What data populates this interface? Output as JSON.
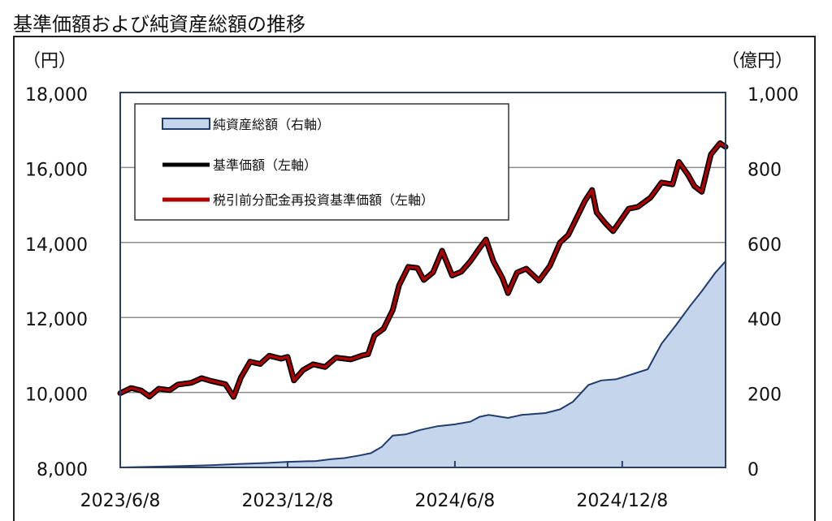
{
  "title": "基準価額および純資産総額の推移",
  "chart_data": {
    "type": "line",
    "title": "基準価額および純資産総額の推移",
    "left_axis": {
      "unit_label": "（円）",
      "range": [
        8000,
        18000
      ],
      "ticks": [
        8000,
        10000,
        12000,
        14000,
        16000,
        18000
      ],
      "tick_labels": [
        "8,000",
        "10,000",
        "12,000",
        "14,000",
        "16,000",
        "18,000"
      ]
    },
    "right_axis": {
      "unit_label": "（億円）",
      "range": [
        0,
        1000
      ],
      "ticks": [
        0,
        200,
        400,
        600,
        800,
        1000
      ],
      "tick_labels": [
        "0",
        "200",
        "400",
        "600",
        "800",
        "1,000"
      ]
    },
    "x_axis": {
      "range": [
        "2023-06-08",
        "2025-03-31"
      ],
      "ticks": [
        "2023-06-08",
        "2023-12-08",
        "2024-06-08",
        "2024-12-08"
      ],
      "tick_labels": [
        "2023/6/8",
        "2023/12/8",
        "2024/6/8",
        "2024/12/8"
      ]
    },
    "grid": true,
    "legend_position": "top-left",
    "series": [
      {
        "name": "純資産総額（右軸）",
        "type": "area",
        "axis": "right",
        "color": "#1f3d6e",
        "fill": "#c5d5ec",
        "points": [
          [
            "2023-06-08",
            0
          ],
          [
            "2023-07-15",
            2
          ],
          [
            "2023-08-15",
            4
          ],
          [
            "2023-09-15",
            6
          ],
          [
            "2023-10-15",
            9
          ],
          [
            "2023-11-15",
            12
          ],
          [
            "2023-12-08",
            15
          ],
          [
            "2024-01-08",
            17
          ],
          [
            "2024-01-25",
            22
          ],
          [
            "2024-02-08",
            25
          ],
          [
            "2024-02-25",
            32
          ],
          [
            "2024-03-08",
            38
          ],
          [
            "2024-03-20",
            55
          ],
          [
            "2024-04-01",
            85
          ],
          [
            "2024-04-15",
            88
          ],
          [
            "2024-05-01",
            100
          ],
          [
            "2024-05-20",
            110
          ],
          [
            "2024-06-08",
            115
          ],
          [
            "2024-06-25",
            122
          ],
          [
            "2024-07-05",
            135
          ],
          [
            "2024-07-15",
            140
          ],
          [
            "2024-08-05",
            132
          ],
          [
            "2024-08-20",
            140
          ],
          [
            "2024-09-15",
            145
          ],
          [
            "2024-10-01",
            155
          ],
          [
            "2024-10-15",
            175
          ],
          [
            "2024-11-01",
            220
          ],
          [
            "2024-11-15",
            232
          ],
          [
            "2024-12-01",
            235
          ],
          [
            "2024-12-08",
            240
          ],
          [
            "2025-01-05",
            262
          ],
          [
            "2025-01-20",
            330
          ],
          [
            "2025-02-05",
            380
          ],
          [
            "2025-02-20",
            430
          ],
          [
            "2025-03-05",
            470
          ],
          [
            "2025-03-20",
            520
          ],
          [
            "2025-03-31",
            550
          ]
        ]
      },
      {
        "name": "基準価額（左軸）",
        "type": "line",
        "axis": "left",
        "color": "#000000",
        "points": [
          [
            "2023-06-08",
            9980
          ],
          [
            "2023-06-20",
            10120
          ],
          [
            "2023-07-01",
            10050
          ],
          [
            "2023-07-10",
            9890
          ],
          [
            "2023-07-20",
            10100
          ],
          [
            "2023-08-01",
            10060
          ],
          [
            "2023-08-10",
            10210
          ],
          [
            "2023-08-25",
            10260
          ],
          [
            "2023-09-05",
            10380
          ],
          [
            "2023-09-15",
            10310
          ],
          [
            "2023-10-01",
            10220
          ],
          [
            "2023-10-10",
            9880
          ],
          [
            "2023-10-18",
            10400
          ],
          [
            "2023-10-28",
            10820
          ],
          [
            "2023-11-08",
            10760
          ],
          [
            "2023-11-18",
            10980
          ],
          [
            "2023-12-01",
            10900
          ],
          [
            "2023-12-08",
            10950
          ],
          [
            "2023-12-15",
            10320
          ],
          [
            "2023-12-25",
            10600
          ],
          [
            "2024-01-05",
            10750
          ],
          [
            "2024-01-18",
            10680
          ],
          [
            "2024-01-30",
            10930
          ],
          [
            "2024-02-15",
            10880
          ],
          [
            "2024-02-28",
            10990
          ],
          [
            "2024-03-05",
            11020
          ],
          [
            "2024-03-12",
            11520
          ],
          [
            "2024-03-22",
            11700
          ],
          [
            "2024-04-01",
            12200
          ],
          [
            "2024-04-08",
            12860
          ],
          [
            "2024-04-18",
            13350
          ],
          [
            "2024-04-28",
            13320
          ],
          [
            "2024-05-05",
            13000
          ],
          [
            "2024-05-15",
            13200
          ],
          [
            "2024-05-25",
            13780
          ],
          [
            "2024-06-05",
            13120
          ],
          [
            "2024-06-15",
            13220
          ],
          [
            "2024-06-25",
            13500
          ],
          [
            "2024-07-05",
            13850
          ],
          [
            "2024-07-12",
            14080
          ],
          [
            "2024-07-20",
            13500
          ],
          [
            "2024-07-30",
            13050
          ],
          [
            "2024-08-05",
            12650
          ],
          [
            "2024-08-15",
            13200
          ],
          [
            "2024-08-25",
            13300
          ],
          [
            "2024-09-08",
            12980
          ],
          [
            "2024-09-20",
            13380
          ],
          [
            "2024-10-01",
            14000
          ],
          [
            "2024-10-10",
            14200
          ],
          [
            "2024-10-20",
            14700
          ],
          [
            "2024-10-28",
            15100
          ],
          [
            "2024-11-05",
            15400
          ],
          [
            "2024-11-10",
            14800
          ],
          [
            "2024-11-20",
            14500
          ],
          [
            "2024-11-28",
            14300
          ],
          [
            "2024-12-08",
            14650
          ],
          [
            "2024-12-15",
            14900
          ],
          [
            "2024-12-25",
            14950
          ],
          [
            "2025-01-08",
            15200
          ],
          [
            "2025-01-20",
            15600
          ],
          [
            "2025-02-01",
            15550
          ],
          [
            "2025-02-08",
            16150
          ],
          [
            "2025-02-18",
            15800
          ],
          [
            "2025-02-25",
            15500
          ],
          [
            "2025-03-05",
            15350
          ],
          [
            "2025-03-15",
            16350
          ],
          [
            "2025-03-25",
            16650
          ],
          [
            "2025-03-31",
            16550
          ]
        ]
      },
      {
        "name": "税引前分配金再投資基準価額（左軸）",
        "type": "line",
        "axis": "left",
        "color": "#b00000",
        "points": [
          [
            "2023-06-08",
            9980
          ],
          [
            "2023-06-20",
            10120
          ],
          [
            "2023-07-01",
            10050
          ],
          [
            "2023-07-10",
            9890
          ],
          [
            "2023-07-20",
            10100
          ],
          [
            "2023-08-01",
            10060
          ],
          [
            "2023-08-10",
            10210
          ],
          [
            "2023-08-25",
            10260
          ],
          [
            "2023-09-05",
            10380
          ],
          [
            "2023-09-15",
            10310
          ],
          [
            "2023-10-01",
            10220
          ],
          [
            "2023-10-10",
            9880
          ],
          [
            "2023-10-18",
            10400
          ],
          [
            "2023-10-28",
            10820
          ],
          [
            "2023-11-08",
            10760
          ],
          [
            "2023-11-18",
            10980
          ],
          [
            "2023-12-01",
            10900
          ],
          [
            "2023-12-08",
            10950
          ],
          [
            "2023-12-15",
            10320
          ],
          [
            "2023-12-25",
            10600
          ],
          [
            "2024-01-05",
            10750
          ],
          [
            "2024-01-18",
            10680
          ],
          [
            "2024-01-30",
            10930
          ],
          [
            "2024-02-15",
            10880
          ],
          [
            "2024-02-28",
            10990
          ],
          [
            "2024-03-05",
            11020
          ],
          [
            "2024-03-12",
            11520
          ],
          [
            "2024-03-22",
            11700
          ],
          [
            "2024-04-01",
            12200
          ],
          [
            "2024-04-08",
            12860
          ],
          [
            "2024-04-18",
            13350
          ],
          [
            "2024-04-28",
            13320
          ],
          [
            "2024-05-05",
            13000
          ],
          [
            "2024-05-15",
            13200
          ],
          [
            "2024-05-25",
            13780
          ],
          [
            "2024-06-05",
            13120
          ],
          [
            "2024-06-15",
            13220
          ],
          [
            "2024-06-25",
            13500
          ],
          [
            "2024-07-05",
            13850
          ],
          [
            "2024-07-12",
            14080
          ],
          [
            "2024-07-20",
            13500
          ],
          [
            "2024-07-30",
            13050
          ],
          [
            "2024-08-05",
            12650
          ],
          [
            "2024-08-15",
            13200
          ],
          [
            "2024-08-25",
            13300
          ],
          [
            "2024-09-08",
            12980
          ],
          [
            "2024-09-20",
            13380
          ],
          [
            "2024-10-01",
            14000
          ],
          [
            "2024-10-10",
            14200
          ],
          [
            "2024-10-20",
            14700
          ],
          [
            "2024-10-28",
            15100
          ],
          [
            "2024-11-05",
            15400
          ],
          [
            "2024-11-10",
            14800
          ],
          [
            "2024-11-20",
            14500
          ],
          [
            "2024-11-28",
            14300
          ],
          [
            "2024-12-08",
            14650
          ],
          [
            "2024-12-15",
            14900
          ],
          [
            "2024-12-25",
            14950
          ],
          [
            "2025-01-08",
            15200
          ],
          [
            "2025-01-20",
            15600
          ],
          [
            "2025-02-01",
            15550
          ],
          [
            "2025-02-08",
            16150
          ],
          [
            "2025-02-18",
            15800
          ],
          [
            "2025-02-25",
            15500
          ],
          [
            "2025-03-05",
            15350
          ],
          [
            "2025-03-15",
            16350
          ],
          [
            "2025-03-25",
            16650
          ],
          [
            "2025-03-31",
            16550
          ]
        ]
      }
    ]
  }
}
